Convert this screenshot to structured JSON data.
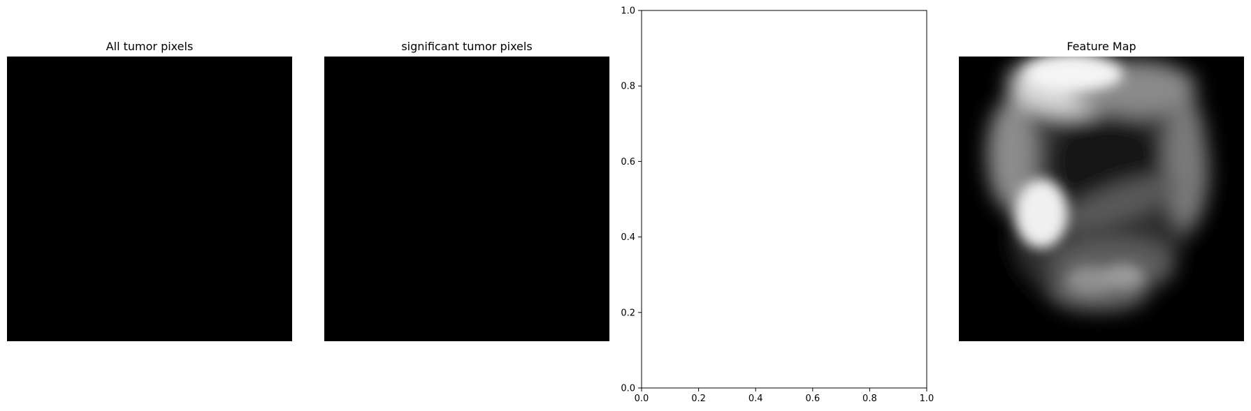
{
  "chart_data": [
    {
      "type": "heatmap",
      "title": "All tumor pixels",
      "values": "all black (zero)",
      "axes": "off",
      "colormap": "gray"
    },
    {
      "type": "heatmap",
      "title": "significant tumor pixels",
      "values": "all black (zero)",
      "axes": "off",
      "colormap": "gray"
    },
    {
      "type": "scatter",
      "title": "",
      "xlabel": "",
      "ylabel": "",
      "xlim": [
        0.0,
        1.0
      ],
      "ylim": [
        0.0,
        1.0
      ],
      "xticks": [
        "0.0",
        "0.2",
        "0.4",
        "0.6",
        "0.8",
        "1.0"
      ],
      "yticks": [
        "0.0",
        "0.2",
        "0.4",
        "0.6",
        "0.8",
        "1.0"
      ],
      "series": [],
      "grid": false
    },
    {
      "type": "heatmap",
      "title": "Feature Map",
      "values": "blurred grayscale feature activation map",
      "axes": "off",
      "colormap": "gray"
    }
  ],
  "colors": {
    "background": "#ffffff",
    "image_black": "#000000",
    "axis": "#000000"
  }
}
